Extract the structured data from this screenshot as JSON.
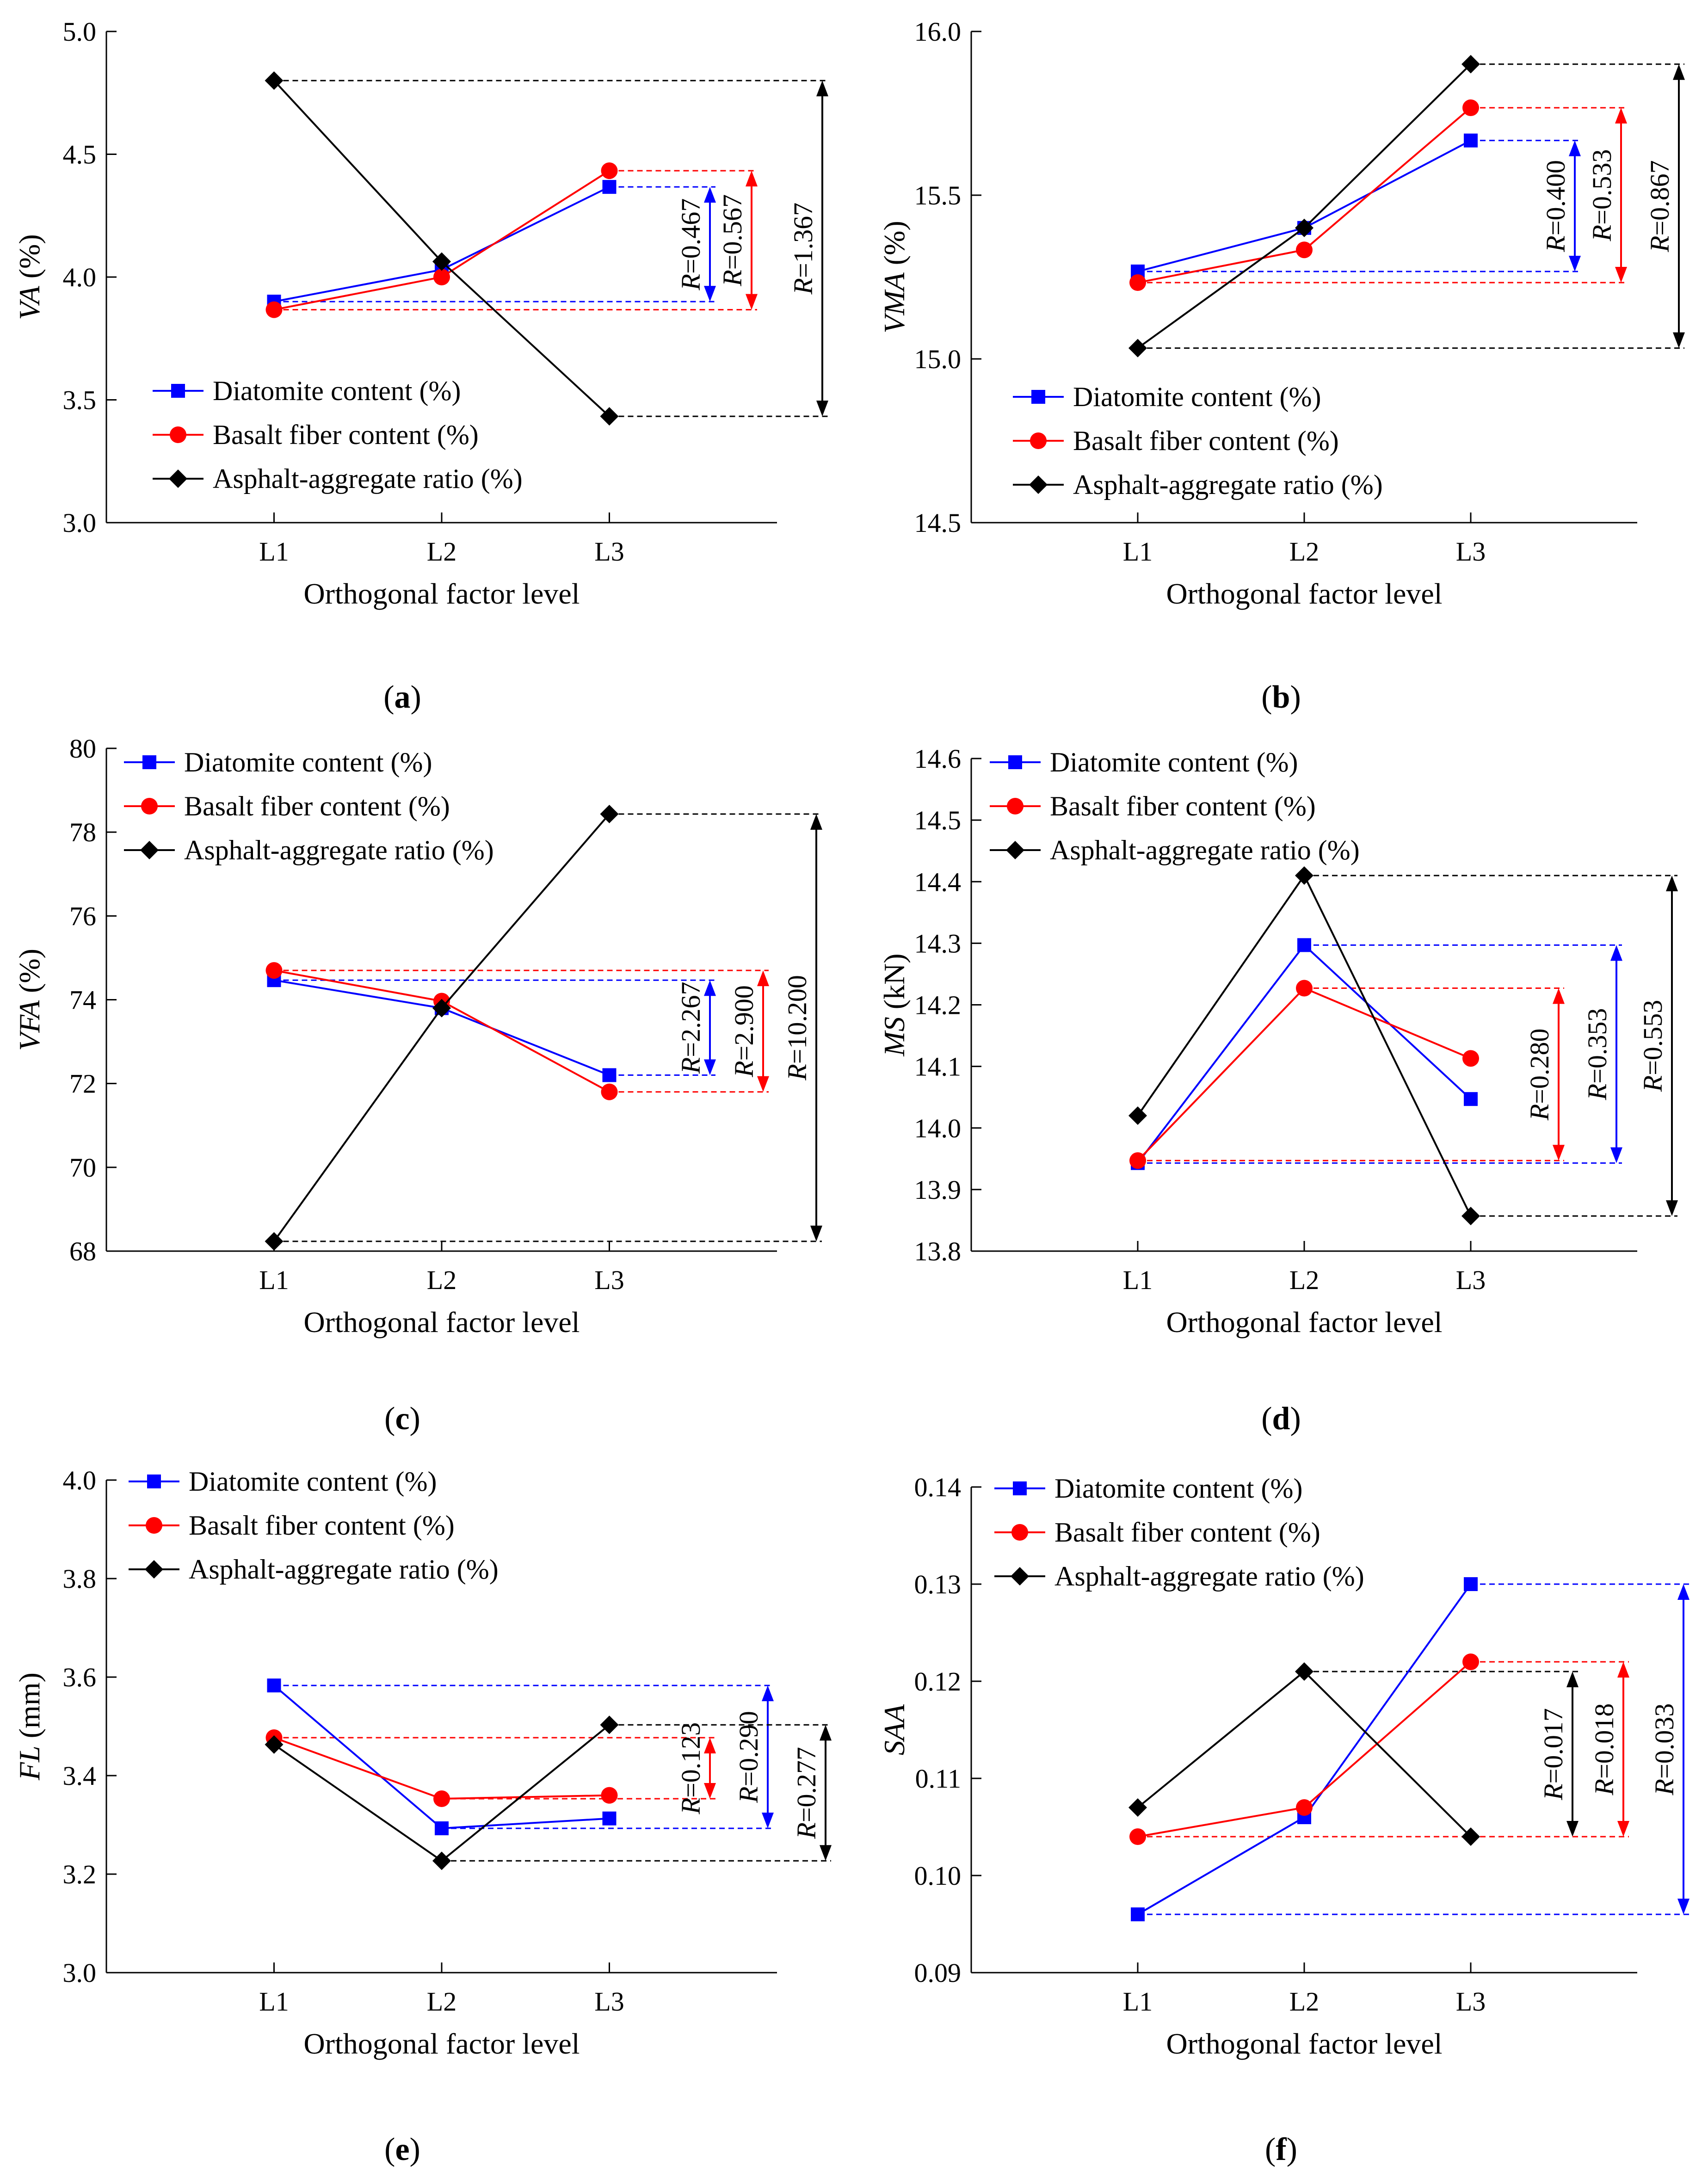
{
  "colors": {
    "diatomite": "#0000ff",
    "basalt": "#ff0000",
    "ratio": "#000000"
  },
  "legend_labels": [
    "Diatomite content (%)",
    "Basalt fiber content (%)",
    "Asphalt-aggregate ratio (%)"
  ],
  "chart_data": [
    {
      "type": "line",
      "panel_label": "a",
      "xlabel": "Orthogonal factor level",
      "ylabel": "VA (%)",
      "ylabel_parts": [
        {
          "text": "VA",
          "italic": true
        },
        {
          "text": " (%)",
          "italic": false
        }
      ],
      "categories": [
        "L1",
        "L2",
        "L3"
      ],
      "ylim": [
        3.0,
        5.0
      ],
      "yticks": [
        "3.0",
        "3.5",
        "4.0",
        "4.5",
        "5.0"
      ],
      "legend_position": "bottom-left",
      "series": [
        {
          "name": "Diatomite content (%)",
          "values": [
            3.9,
            4.03,
            4.367
          ]
        },
        {
          "name": "Basalt fiber content (%)",
          "values": [
            3.867,
            4.0,
            4.433
          ]
        },
        {
          "name": "Asphalt-aggregate ratio (%)",
          "values": [
            4.8,
            4.063,
            3.433
          ]
        }
      ],
      "ranges": [
        {
          "series": 0,
          "label": "=0.467",
          "from": 3.9,
          "to": 4.367
        },
        {
          "series": 1,
          "label": "=0.567",
          "from": 3.867,
          "to": 4.433
        },
        {
          "series": 2,
          "label": "=1.367",
          "from": 3.433,
          "to": 4.8
        }
      ]
    },
    {
      "type": "line",
      "panel_label": "b",
      "xlabel": "Orthogonal factor level",
      "ylabel": "VMA (%)",
      "ylabel_parts": [
        {
          "text": "VMA",
          "italic": true
        },
        {
          "text": " (%)",
          "italic": false
        }
      ],
      "categories": [
        "L1",
        "L2",
        "L3"
      ],
      "ylim": [
        14.5,
        16.0
      ],
      "yticks": [
        "14.5",
        "15.0",
        "15.5",
        "16.0"
      ],
      "legend_position": "bottom-left",
      "series": [
        {
          "name": "Diatomite content (%)",
          "values": [
            15.267,
            15.4,
            15.667
          ]
        },
        {
          "name": "Basalt fiber content (%)",
          "values": [
            15.233,
            15.333,
            15.767
          ]
        },
        {
          "name": "Asphalt-aggregate ratio (%)",
          "values": [
            15.033,
            15.4,
            15.9
          ]
        }
      ],
      "ranges": [
        {
          "series": 0,
          "label": "=0.400",
          "from": 15.267,
          "to": 15.667
        },
        {
          "series": 1,
          "label": "=0.533",
          "from": 15.233,
          "to": 15.767
        },
        {
          "series": 2,
          "label": "=0.867",
          "from": 15.033,
          "to": 15.9
        }
      ]
    },
    {
      "type": "line",
      "panel_label": "c",
      "xlabel": "Orthogonal factor level",
      "ylabel": "VFA (%)",
      "ylabel_parts": [
        {
          "text": "VFA",
          "italic": true
        },
        {
          "text": " (%)",
          "italic": false
        }
      ],
      "categories": [
        "L1",
        "L2",
        "L3"
      ],
      "ylim": [
        68,
        80
      ],
      "yticks": [
        "68",
        "70",
        "72",
        "74",
        "76",
        "78",
        "80"
      ],
      "legend_position": "top-left",
      "series": [
        {
          "name": "Diatomite content (%)",
          "values": [
            74.467,
            73.8,
            72.2
          ]
        },
        {
          "name": "Basalt fiber content (%)",
          "values": [
            74.7,
            73.967,
            71.8
          ]
        },
        {
          "name": "Asphalt-aggregate ratio (%)",
          "values": [
            68.233,
            73.8,
            78.433
          ]
        }
      ],
      "ranges": [
        {
          "series": 0,
          "label": "=2.267",
          "from": 72.2,
          "to": 74.467
        },
        {
          "series": 1,
          "label": "=2.900",
          "from": 71.8,
          "to": 74.7
        },
        {
          "series": 2,
          "label": "=10.200",
          "from": 68.233,
          "to": 78.433
        }
      ]
    },
    {
      "type": "line",
      "panel_label": "d",
      "xlabel": "Orthogonal factor level",
      "ylabel": "MS (kN)",
      "ylabel_parts": [
        {
          "text": "MS",
          "italic": true
        },
        {
          "text": " (kN)",
          "italic": false
        }
      ],
      "categories": [
        "L1",
        "L2",
        "L3"
      ],
      "ylim": [
        13.8,
        14.6
      ],
      "yticks": [
        "13.8",
        "13.9",
        "14.0",
        "14.1",
        "14.2",
        "14.3",
        "14.4",
        "14.5",
        "14.6"
      ],
      "legend_position": "top-left",
      "series": [
        {
          "name": "Diatomite content (%)",
          "values": [
            13.943,
            14.297,
            14.047
          ]
        },
        {
          "name": "Basalt fiber content (%)",
          "values": [
            13.947,
            14.227,
            14.113
          ]
        },
        {
          "name": "Asphalt-aggregate ratio (%)",
          "values": [
            14.02,
            14.41,
            13.857
          ]
        }
      ],
      "ranges": [
        {
          "series": 1,
          "label": "=0.280",
          "from": 13.947,
          "to": 14.227
        },
        {
          "series": 0,
          "label": "=0.353",
          "from": 13.943,
          "to": 14.297
        },
        {
          "series": 2,
          "label": "=0.553",
          "from": 13.857,
          "to": 14.41
        }
      ]
    },
    {
      "type": "line",
      "panel_label": "e",
      "xlabel": "Orthogonal factor level",
      "ylabel": "FL (mm)",
      "ylabel_parts": [
        {
          "text": "FL",
          "italic": true
        },
        {
          "text": " (mm)",
          "italic": false
        }
      ],
      "categories": [
        "L1",
        "L2",
        "L3"
      ],
      "ylim": [
        3.0,
        4.0
      ],
      "yticks": [
        "3.0",
        "3.2",
        "3.4",
        "3.6",
        "3.8",
        "4.0"
      ],
      "legend_position": "top-left",
      "series": [
        {
          "name": "Diatomite content (%)",
          "values": [
            3.583,
            3.293,
            3.313
          ]
        },
        {
          "name": "Basalt fiber content (%)",
          "values": [
            3.477,
            3.353,
            3.36
          ]
        },
        {
          "name": "Asphalt-aggregate ratio (%)",
          "values": [
            3.463,
            3.227,
            3.503
          ]
        }
      ],
      "ranges": [
        {
          "series": 1,
          "label": "=0.123",
          "from": 3.353,
          "to": 3.477
        },
        {
          "series": 0,
          "label": "=0.290",
          "from": 3.293,
          "to": 3.583
        },
        {
          "series": 2,
          "label": "=0.277",
          "from": 3.227,
          "to": 3.503
        }
      ]
    },
    {
      "type": "line",
      "panel_label": "f",
      "xlabel": "Orthogonal factor level",
      "ylabel": "SAA",
      "ylabel_parts": [
        {
          "text": "SAA",
          "italic": true
        }
      ],
      "categories": [
        "L1",
        "L2",
        "L3"
      ],
      "ylim": [
        0.09,
        0.14
      ],
      "yticks": [
        "0.09",
        "0.10",
        "0.11",
        "0.12",
        "0.13",
        "0.14"
      ],
      "legend_position": "top-left",
      "series": [
        {
          "name": "Diatomite content (%)",
          "values": [
            0.096,
            0.106,
            0.13
          ]
        },
        {
          "name": "Basalt fiber content (%)",
          "values": [
            0.104,
            0.107,
            0.122
          ]
        },
        {
          "name": "Asphalt-aggregate ratio (%)",
          "values": [
            0.107,
            0.121,
            0.104
          ]
        }
      ],
      "ranges": [
        {
          "series": 2,
          "label": "=0.017",
          "from": 0.104,
          "to": 0.121
        },
        {
          "series": 1,
          "label": "=0.018",
          "from": 0.104,
          "to": 0.122
        },
        {
          "series": 0,
          "label": "=0.033",
          "from": 0.096,
          "to": 0.13
        }
      ]
    }
  ]
}
